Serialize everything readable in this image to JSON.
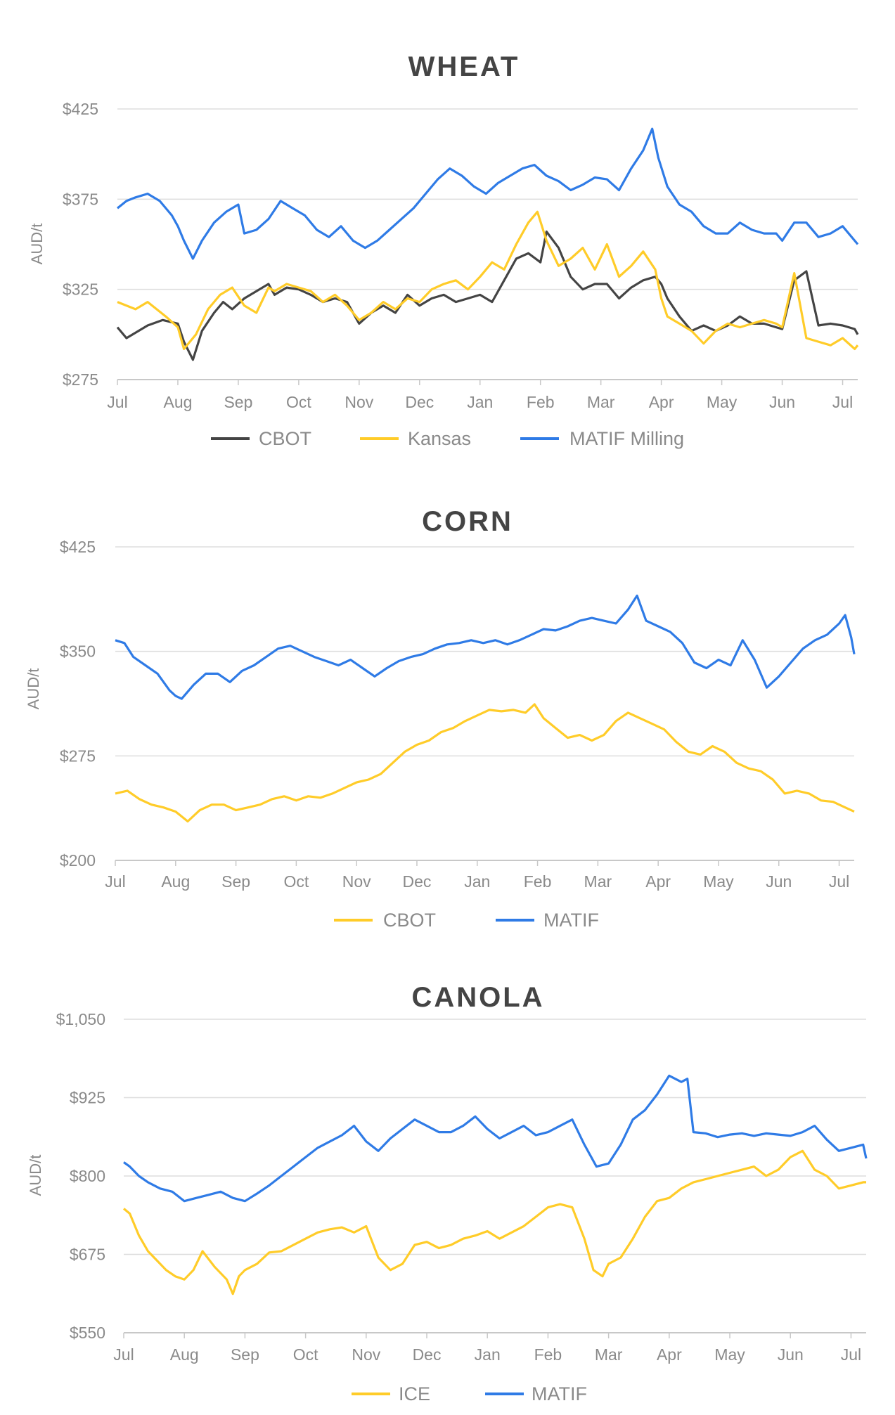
{
  "months": [
    "Jul",
    "Aug",
    "Sep",
    "Oct",
    "Nov",
    "Dec",
    "Jan",
    "Feb",
    "Mar",
    "Apr",
    "May",
    "Jun",
    "Jul"
  ],
  "colors": {
    "grid": "#dddddd",
    "axis": "#c8c8c8",
    "cbot_dark": "#444444",
    "yellow": "#FFCC29",
    "blue": "#2F7BE6"
  },
  "chart_data": [
    {
      "type": "line",
      "title": "WHEAT",
      "ylabel": "AUD/t",
      "ylim": [
        275,
        425
      ],
      "yticks": [
        425,
        375,
        325,
        275
      ],
      "ytick_labels": [
        "$425",
        "$375",
        "$325",
        "$275"
      ],
      "x_months": [
        "Jul",
        "Aug",
        "Sep",
        "Oct",
        "Nov",
        "Dec",
        "Jan",
        "Feb",
        "Mar",
        "Apr",
        "May",
        "Jun",
        "Jul"
      ],
      "series": [
        {
          "name": "CBOT",
          "color": "#444444",
          "x": [
            0,
            0.15,
            0.5,
            0.75,
            1.0,
            1.1,
            1.25,
            1.4,
            1.6,
            1.75,
            1.9,
            2.1,
            2.3,
            2.5,
            2.6,
            2.8,
            3.0,
            3.2,
            3.4,
            3.6,
            3.8,
            4.0,
            4.2,
            4.4,
            4.6,
            4.8,
            5.0,
            5.2,
            5.4,
            5.6,
            5.8,
            6.0,
            6.2,
            6.4,
            6.6,
            6.8,
            7.0,
            7.1,
            7.3,
            7.5,
            7.7,
            7.9,
            8.1,
            8.3,
            8.5,
            8.7,
            8.9,
            9.0,
            9.1,
            9.3,
            9.5,
            9.7,
            9.9,
            10.1,
            10.3,
            10.5,
            10.7,
            10.9,
            11.0,
            11.2,
            11.4,
            11.6,
            11.8,
            12.0,
            12.2,
            12.25
          ],
          "values": [
            304,
            298,
            305,
            308,
            306,
            296,
            286,
            302,
            312,
            318,
            314,
            320,
            324,
            328,
            322,
            326,
            325,
            322,
            318,
            320,
            318,
            306,
            312,
            316,
            312,
            322,
            316,
            320,
            322,
            318,
            320,
            322,
            318,
            330,
            342,
            345,
            340,
            357,
            348,
            332,
            325,
            328,
            328,
            320,
            326,
            330,
            332,
            328,
            320,
            310,
            302,
            305,
            302,
            305,
            310,
            306,
            306,
            304,
            303,
            330,
            335,
            305,
            306,
            305,
            303,
            300
          ]
        },
        {
          "name": "Kansas",
          "color": "#FFCC29",
          "x": [
            0,
            0.3,
            0.5,
            0.8,
            1.0,
            1.1,
            1.3,
            1.5,
            1.7,
            1.9,
            2.1,
            2.3,
            2.5,
            2.6,
            2.8,
            3.0,
            3.2,
            3.4,
            3.6,
            3.8,
            4.0,
            4.2,
            4.4,
            4.6,
            4.8,
            5.0,
            5.2,
            5.4,
            5.6,
            5.8,
            6.0,
            6.2,
            6.4,
            6.6,
            6.8,
            6.95,
            7.1,
            7.3,
            7.5,
            7.7,
            7.9,
            8.1,
            8.3,
            8.5,
            8.7,
            8.9,
            9.0,
            9.1,
            9.3,
            9.5,
            9.7,
            9.9,
            10.1,
            10.3,
            10.5,
            10.7,
            10.9,
            11.0,
            11.2,
            11.4,
            11.6,
            11.8,
            12.0,
            12.2,
            12.25
          ],
          "values": [
            318,
            314,
            318,
            310,
            304,
            292,
            300,
            314,
            322,
            326,
            316,
            312,
            326,
            324,
            328,
            326,
            324,
            318,
            322,
            316,
            308,
            312,
            318,
            314,
            320,
            318,
            325,
            328,
            330,
            325,
            332,
            340,
            336,
            350,
            362,
            368,
            352,
            338,
            342,
            348,
            336,
            350,
            332,
            338,
            346,
            336,
            320,
            310,
            306,
            302,
            295,
            302,
            306,
            304,
            306,
            308,
            306,
            304,
            334,
            298,
            296,
            294,
            298,
            292,
            294
          ]
        },
        {
          "name": "MATIF Milling",
          "color": "#2F7BE6",
          "x": [
            0,
            0.15,
            0.3,
            0.5,
            0.7,
            0.9,
            1.0,
            1.1,
            1.25,
            1.4,
            1.6,
            1.8,
            2.0,
            2.1,
            2.3,
            2.5,
            2.7,
            2.9,
            3.1,
            3.3,
            3.5,
            3.7,
            3.9,
            4.1,
            4.3,
            4.5,
            4.7,
            4.9,
            5.1,
            5.3,
            5.5,
            5.7,
            5.9,
            6.1,
            6.3,
            6.5,
            6.7,
            6.9,
            7.1,
            7.3,
            7.5,
            7.7,
            7.9,
            8.1,
            8.3,
            8.5,
            8.7,
            8.85,
            8.95,
            9.1,
            9.3,
            9.5,
            9.7,
            9.9,
            10.1,
            10.3,
            10.5,
            10.7,
            10.9,
            11.0,
            11.2,
            11.4,
            11.6,
            11.8,
            12.0,
            12.2,
            12.25
          ],
          "values": [
            370,
            374,
            376,
            378,
            374,
            366,
            360,
            352,
            342,
            352,
            362,
            368,
            372,
            356,
            358,
            364,
            374,
            370,
            366,
            358,
            354,
            360,
            352,
            348,
            352,
            358,
            364,
            370,
            378,
            386,
            392,
            388,
            382,
            378,
            384,
            388,
            392,
            394,
            388,
            385,
            380,
            383,
            387,
            386,
            380,
            392,
            402,
            414,
            398,
            382,
            372,
            368,
            360,
            356,
            356,
            362,
            358,
            356,
            356,
            352,
            362,
            362,
            354,
            356,
            360,
            352,
            350
          ]
        }
      ]
    },
    {
      "type": "line",
      "title": "CORN",
      "ylabel": "AUD/t",
      "ylim": [
        200,
        425
      ],
      "yticks": [
        425,
        350,
        275,
        200
      ],
      "ytick_labels": [
        "$425",
        "$350",
        "$275",
        "$200"
      ],
      "x_months": [
        "Jul",
        "Aug",
        "Sep",
        "Oct",
        "Nov",
        "Dec",
        "Jan",
        "Feb",
        "Mar",
        "Apr",
        "May",
        "Jun",
        "Jul"
      ],
      "series": [
        {
          "name": "CBOT",
          "color": "#FFCC29",
          "x": [
            0,
            0.2,
            0.4,
            0.6,
            0.8,
            1.0,
            1.2,
            1.4,
            1.6,
            1.8,
            2.0,
            2.2,
            2.4,
            2.6,
            2.8,
            3.0,
            3.2,
            3.4,
            3.6,
            3.8,
            4.0,
            4.2,
            4.4,
            4.6,
            4.8,
            5.0,
            5.2,
            5.4,
            5.6,
            5.8,
            6.0,
            6.2,
            6.4,
            6.6,
            6.8,
            6.95,
            7.1,
            7.3,
            7.5,
            7.7,
            7.9,
            8.1,
            8.3,
            8.5,
            8.7,
            8.9,
            9.1,
            9.3,
            9.5,
            9.7,
            9.9,
            10.1,
            10.3,
            10.5,
            10.7,
            10.9,
            11.1,
            11.3,
            11.5,
            11.7,
            11.9,
            12.1,
            12.25
          ],
          "values": [
            248,
            250,
            244,
            240,
            238,
            235,
            228,
            236,
            240,
            240,
            236,
            238,
            240,
            244,
            246,
            243,
            246,
            245,
            248,
            252,
            256,
            258,
            262,
            270,
            278,
            283,
            286,
            292,
            295,
            300,
            304,
            308,
            307,
            308,
            306,
            312,
            302,
            295,
            288,
            290,
            286,
            290,
            300,
            306,
            302,
            298,
            294,
            285,
            278,
            276,
            282,
            278,
            270,
            266,
            264,
            258,
            248,
            250,
            248,
            243,
            242,
            238,
            235
          ]
        },
        {
          "name": "MATIF",
          "color": "#2F7BE6",
          "x": [
            0,
            0.15,
            0.3,
            0.5,
            0.7,
            0.9,
            1.0,
            1.1,
            1.3,
            1.5,
            1.7,
            1.9,
            2.1,
            2.3,
            2.5,
            2.7,
            2.9,
            3.1,
            3.3,
            3.5,
            3.7,
            3.9,
            4.1,
            4.3,
            4.5,
            4.7,
            4.9,
            5.1,
            5.3,
            5.5,
            5.7,
            5.9,
            6.1,
            6.3,
            6.5,
            6.7,
            6.9,
            7.1,
            7.3,
            7.5,
            7.7,
            7.9,
            8.1,
            8.3,
            8.5,
            8.65,
            8.8,
            9.0,
            9.2,
            9.4,
            9.6,
            9.8,
            10.0,
            10.2,
            10.4,
            10.6,
            10.8,
            11.0,
            11.2,
            11.4,
            11.6,
            11.8,
            12.0,
            12.1,
            12.2,
            12.25
          ],
          "values": [
            358,
            356,
            346,
            340,
            334,
            322,
            318,
            316,
            326,
            334,
            334,
            328,
            336,
            340,
            346,
            352,
            354,
            350,
            346,
            343,
            340,
            344,
            338,
            332,
            338,
            343,
            346,
            348,
            352,
            355,
            356,
            358,
            356,
            358,
            355,
            358,
            362,
            366,
            365,
            368,
            372,
            374,
            372,
            370,
            380,
            390,
            372,
            368,
            364,
            356,
            342,
            338,
            344,
            340,
            358,
            344,
            324,
            332,
            342,
            352,
            358,
            362,
            370,
            376,
            360,
            348
          ]
        }
      ]
    },
    {
      "type": "line",
      "title": "CANOLA",
      "ylabel": "AUD/t",
      "ylim": [
        550,
        1050
      ],
      "yticks": [
        1050,
        925,
        800,
        675,
        550
      ],
      "ytick_labels": [
        "$1,050",
        "$925",
        "$800",
        "$675",
        "$550"
      ],
      "x_months": [
        "Jul",
        "Aug",
        "Sep",
        "Oct",
        "Nov",
        "Dec",
        "Jan",
        "Feb",
        "Mar",
        "Apr",
        "May",
        "Jun",
        "Jul"
      ],
      "series": [
        {
          "name": "ICE",
          "color": "#FFCC29",
          "x": [
            0,
            0.1,
            0.25,
            0.4,
            0.55,
            0.7,
            0.85,
            1.0,
            1.15,
            1.3,
            1.5,
            1.7,
            1.8,
            1.9,
            2.0,
            2.2,
            2.4,
            2.6,
            2.8,
            3.0,
            3.2,
            3.4,
            3.6,
            3.8,
            4.0,
            4.2,
            4.4,
            4.6,
            4.8,
            5.0,
            5.2,
            5.4,
            5.6,
            5.8,
            6.0,
            6.2,
            6.4,
            6.6,
            6.8,
            7.0,
            7.2,
            7.4,
            7.6,
            7.75,
            7.9,
            8.0,
            8.2,
            8.4,
            8.6,
            8.8,
            9.0,
            9.2,
            9.4,
            9.6,
            9.8,
            10.0,
            10.2,
            10.4,
            10.6,
            10.8,
            11.0,
            11.2,
            11.4,
            11.6,
            11.8,
            12.0,
            12.2,
            12.25
          ],
          "values": [
            748,
            740,
            705,
            680,
            665,
            650,
            640,
            635,
            650,
            680,
            655,
            635,
            612,
            640,
            650,
            660,
            678,
            680,
            690,
            700,
            710,
            715,
            718,
            710,
            720,
            670,
            650,
            660,
            690,
            695,
            685,
            690,
            700,
            705,
            712,
            700,
            710,
            720,
            735,
            750,
            755,
            750,
            700,
            650,
            640,
            660,
            670,
            700,
            735,
            760,
            765,
            780,
            790,
            795,
            800,
            805,
            810,
            815,
            800,
            810,
            830,
            840,
            810,
            800,
            780,
            785,
            790,
            790
          ]
        },
        {
          "name": "MATIF",
          "color": "#2F7BE6",
          "x": [
            0,
            0.1,
            0.25,
            0.4,
            0.6,
            0.8,
            1.0,
            1.2,
            1.4,
            1.6,
            1.8,
            2.0,
            2.2,
            2.4,
            2.6,
            2.8,
            3.0,
            3.2,
            3.4,
            3.6,
            3.8,
            4.0,
            4.2,
            4.4,
            4.6,
            4.8,
            5.0,
            5.2,
            5.4,
            5.6,
            5.8,
            6.0,
            6.2,
            6.4,
            6.6,
            6.8,
            7.0,
            7.2,
            7.4,
            7.6,
            7.8,
            8.0,
            8.2,
            8.4,
            8.6,
            8.8,
            9.0,
            9.2,
            9.3,
            9.4,
            9.6,
            9.8,
            10.0,
            10.2,
            10.4,
            10.6,
            10.8,
            11.0,
            11.2,
            11.4,
            11.6,
            11.8,
            12.0,
            12.2,
            12.25
          ],
          "values": [
            822,
            815,
            800,
            790,
            780,
            775,
            760,
            765,
            770,
            775,
            765,
            760,
            772,
            785,
            800,
            815,
            830,
            845,
            855,
            865,
            880,
            855,
            840,
            860,
            875,
            890,
            880,
            870,
            870,
            880,
            895,
            875,
            860,
            870,
            880,
            865,
            870,
            880,
            890,
            850,
            815,
            820,
            850,
            890,
            905,
            930,
            960,
            950,
            955,
            870,
            868,
            862,
            866,
            868,
            864,
            868,
            866,
            864,
            870,
            880,
            858,
            840,
            845,
            850,
            828
          ]
        }
      ]
    }
  ]
}
